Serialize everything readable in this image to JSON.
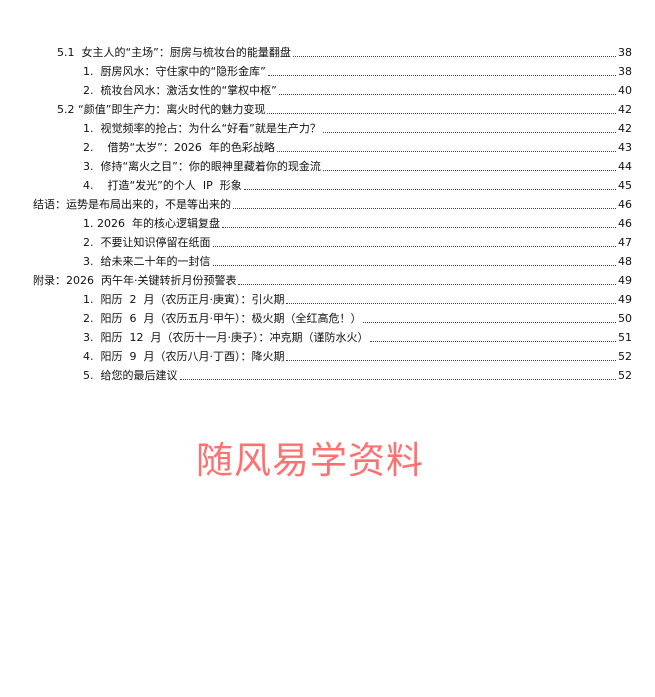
{
  "toc": [
    {
      "level": 1,
      "title": "5.1  女主人的“主场”：厨房与梳妆台的能量翻盘",
      "page": "38"
    },
    {
      "level": 2,
      "title": "1.  厨房风水：守住家中的“隐形金库”",
      "page": "38"
    },
    {
      "level": 2,
      "title": "2.  梳妆台风水：激活女性的“掌权中枢”",
      "page": "40"
    },
    {
      "level": 1,
      "title": "5.2 “颜值”即生产力：离火时代的魅力变现",
      "page": "42"
    },
    {
      "level": 2,
      "title": "1.  视觉频率的抢占：为什么“好看”就是生产力？",
      "page": "42"
    },
    {
      "level": 2,
      "title": "2.    借势“太岁”：2026  年的色彩战略",
      "page": "43"
    },
    {
      "level": 2,
      "title": "3.  修持“离火之目”：你的眼神里藏着你的现金流",
      "page": "44"
    },
    {
      "level": 2,
      "title": "4.    打造“发光”的个人  IP  形象",
      "page": "45"
    },
    {
      "level": 0,
      "title": "结语：运势是布局出来的，不是等出来的",
      "page": "46"
    },
    {
      "level": 2,
      "title": "1. 2026  年的核心逻辑复盘",
      "page": "46"
    },
    {
      "level": 2,
      "title": "2.  不要让知识停留在纸面",
      "page": "47"
    },
    {
      "level": 2,
      "title": "3.  给未来二十年的一封信",
      "page": "48"
    },
    {
      "level": 0,
      "title": "附录：2026  丙午年·关键转折月份预警表",
      "page": "49"
    },
    {
      "level": 2,
      "title": "1.  阳历  2  月（农历正月·庚寅）：引火期",
      "page": "49"
    },
    {
      "level": 2,
      "title": "2.  阳历  6  月（农历五月·甲午）：极火期（全红高危！）",
      "page": "50"
    },
    {
      "level": 2,
      "title": "3.  阳历  12  月（农历十一月·庚子）：冲克期（谨防水火）",
      "page": "51"
    },
    {
      "level": 2,
      "title": "4.  阳历  9  月（农历八月·丁酉）：降火期",
      "page": "52"
    },
    {
      "level": 2,
      "title": "5.  给您的最后建议",
      "page": "52"
    }
  ],
  "watermark": "随风易学资料",
  "colors": {
    "watermark": "#ff4d4d",
    "text": "#111111"
  }
}
